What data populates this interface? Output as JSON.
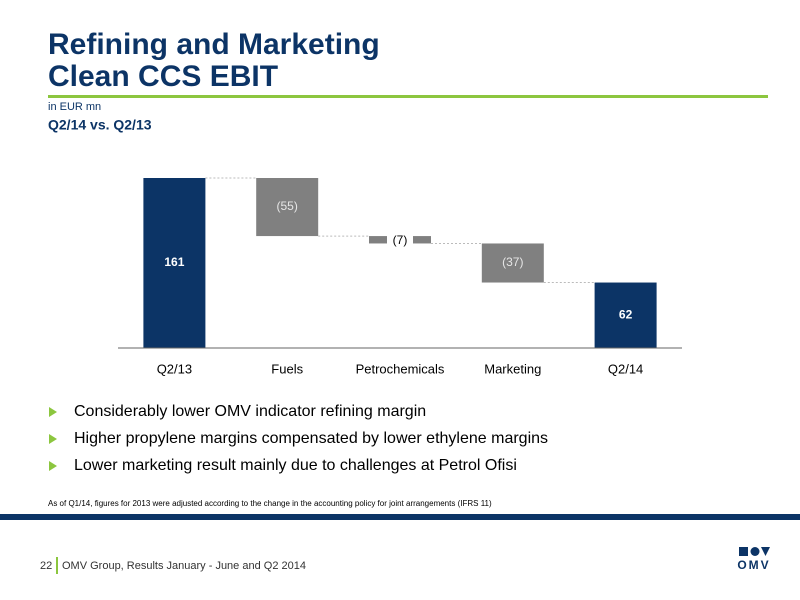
{
  "header": {
    "title_lines": [
      "Refining and Marketing",
      "Clean CCS EBIT"
    ],
    "unit": "in EUR mn",
    "subtitle": "Q2/14 vs. Q2/13"
  },
  "chart_data": {
    "type": "waterfall",
    "categories": [
      "Q2/13",
      "Fuels",
      "Petrochemicals",
      "Marketing",
      "Q2/14"
    ],
    "values": [
      161,
      -55,
      -7,
      -37,
      62
    ],
    "value_labels": [
      "161",
      "(55)",
      "(7)",
      "(37)",
      "62"
    ],
    "totals": [
      true,
      false,
      false,
      false,
      true
    ],
    "total_color": "#0c3466",
    "delta_color": "#808080"
  },
  "bullets": [
    "Considerably lower OMV indicator refining margin",
    "Higher propylene margins compensated by lower ethylene margins",
    "Lower marketing result mainly due to challenges at Petrol Ofisi"
  ],
  "footnote": "As of Q1/14, figures for 2013 were adjusted according to the change in the accounting policy for joint arrangements (IFRS 11)",
  "footer": {
    "page": "22",
    "text": "OMV Group, Results January - June and Q2 2014",
    "logo": "OMV"
  }
}
